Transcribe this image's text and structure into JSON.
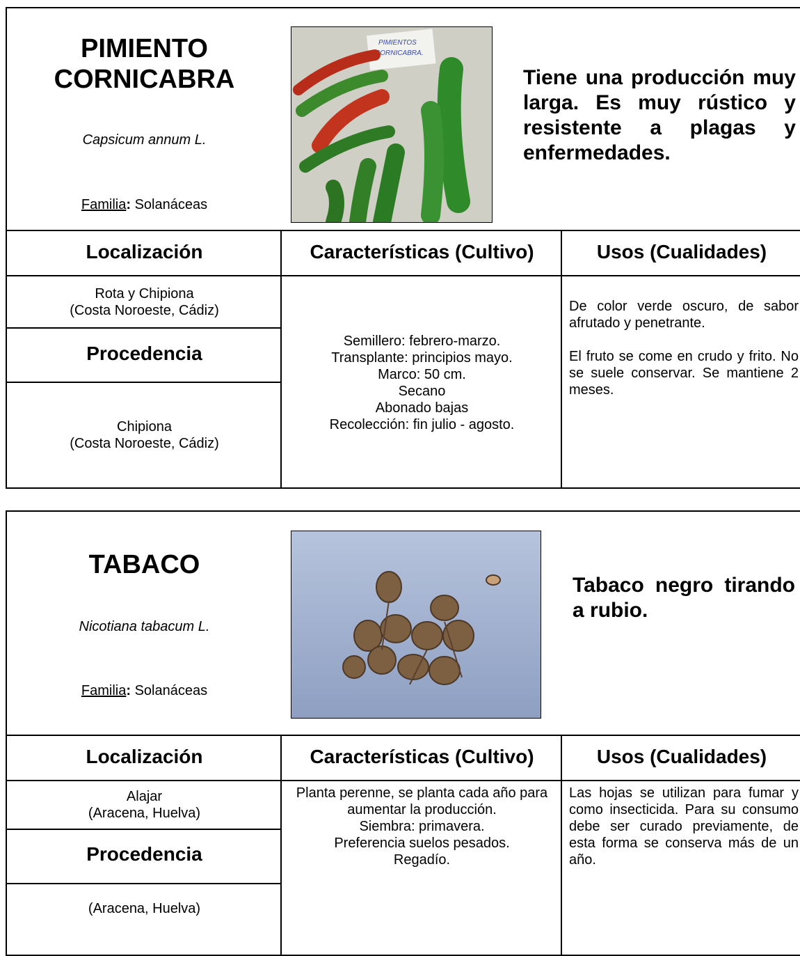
{
  "cards": [
    {
      "title": [
        "PIMIENTO",
        "CORNICABRA"
      ],
      "scientific_name": "Capsicum annum L.",
      "familia": {
        "label": "Familia",
        "colon": ":",
        "value": "Solanáceas"
      },
      "description": "Tiene una producción muy larga. Es muy rústico y resistente a plagas y enfermedades.",
      "photo_label": [
        "PIMIENTOS",
        "CORNICABRA."
      ],
      "headers": [
        "Localización",
        "Características (Cultivo)",
        "Usos (Cualidades)"
      ],
      "localizacion": [
        "Rota y Chipiona",
        "(Costa Noroeste, Cádiz)"
      ],
      "procedencia_label": "Procedencia",
      "procedencia": [
        "Chipiona",
        "(Costa Noroeste, Cádiz)"
      ],
      "caracteristicas": [
        "Semillero: febrero-marzo.",
        "Transplante: principios mayo.",
        "Marco: 50 cm.",
        "Secano",
        "Abonado bajas",
        "Recolección: fin julio -  agosto."
      ],
      "usos": [
        "De color verde oscuro, de sabor afrutado y penetrante.",
        "El fruto se come en crudo y frito. No se suele conservar. Se mantiene 2 meses."
      ]
    },
    {
      "title": [
        "TABACO"
      ],
      "scientific_name": "Nicotiana tabacum L.",
      "familia": {
        "label": "Familia",
        "colon": ":",
        "value": "Solanáceas"
      },
      "description": "Tabaco negro tirando a rubio.",
      "headers": [
        "Localización",
        "Características (Cultivo)",
        "Usos (Cualidades)"
      ],
      "localizacion": [
        "Alajar",
        "(Aracena, Huelva)"
      ],
      "procedencia_label": "Procedencia",
      "procedencia": [
        "(Aracena, Huelva)"
      ],
      "caracteristicas": [
        "Planta perenne, se planta cada año para aumentar la producción.",
        "Siembra: primavera.",
        "Preferencia suelos pesados.",
        "Regadío."
      ],
      "usos": [
        "Las hojas se utilizan para fumar y como insecticida. Para su consumo debe ser curado previamente, de esta forma se conserva más de un año."
      ]
    }
  ]
}
